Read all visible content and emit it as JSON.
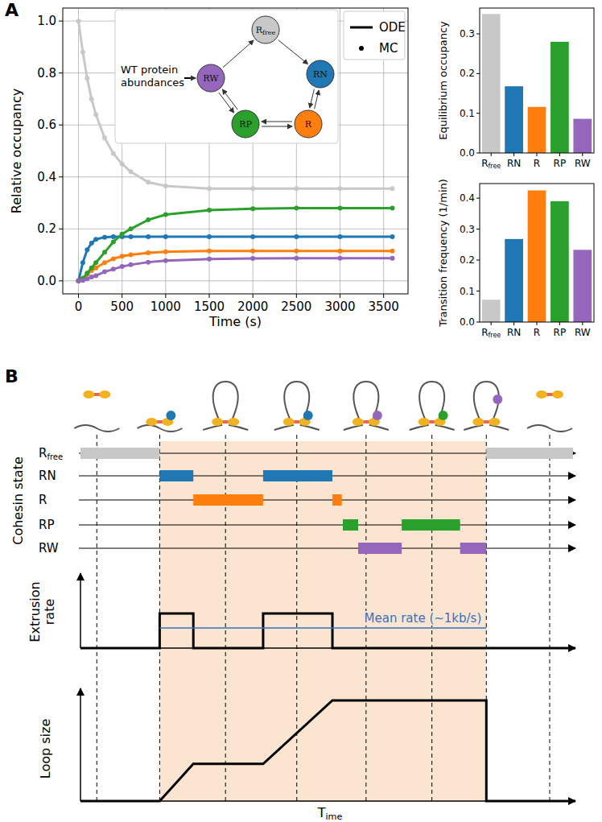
{
  "panel_labels": [
    "A",
    "B"
  ],
  "chart_data": [
    {
      "type": "line",
      "x_label": "Time (s)",
      "y_label": "Relative occupancy",
      "x": [
        0,
        50,
        100,
        150,
        200,
        300,
        400,
        500,
        600,
        800,
        1000,
        1500,
        2000,
        2500,
        3000,
        3600
      ],
      "series": [
        {
          "name": "Rfree",
          "color": "#c8c8c8",
          "values": [
            1.0,
            0.88,
            0.78,
            0.7,
            0.64,
            0.55,
            0.49,
            0.45,
            0.42,
            0.38,
            0.365,
            0.355,
            0.355,
            0.355,
            0.355,
            0.355
          ]
        },
        {
          "name": "RN",
          "color": "#1f77b4",
          "values": [
            0,
            0.07,
            0.12,
            0.145,
            0.16,
            0.168,
            0.17,
            0.17,
            0.17,
            0.17,
            0.17,
            0.17,
            0.17,
            0.17,
            0.17,
            0.17
          ]
        },
        {
          "name": "R",
          "color": "#ff7f0e",
          "values": [
            0,
            0.01,
            0.025,
            0.04,
            0.05,
            0.07,
            0.085,
            0.095,
            0.1,
            0.108,
            0.112,
            0.115,
            0.115,
            0.115,
            0.115,
            0.115
          ]
        },
        {
          "name": "RP",
          "color": "#2ca02c",
          "values": [
            0,
            0.01,
            0.03,
            0.05,
            0.07,
            0.11,
            0.15,
            0.18,
            0.2,
            0.235,
            0.255,
            0.272,
            0.278,
            0.28,
            0.28,
            0.28
          ]
        },
        {
          "name": "RW",
          "color": "#9467bd",
          "values": [
            0,
            0.002,
            0.008,
            0.015,
            0.02,
            0.035,
            0.045,
            0.055,
            0.062,
            0.072,
            0.078,
            0.084,
            0.086,
            0.087,
            0.087,
            0.087
          ]
        }
      ],
      "xlim": [
        -180,
        3780
      ],
      "ylim": [
        -0.05,
        1.05
      ],
      "xticks": [
        0,
        500,
        1000,
        1500,
        2000,
        2500,
        3000,
        3500
      ],
      "yticks": [
        {
          "value": 0,
          "label": "0.0"
        },
        {
          "value": 0.2,
          "label": "0.2"
        },
        {
          "value": 0.4,
          "label": "0.4"
        },
        {
          "value": 0.6,
          "label": "0.6"
        },
        {
          "value": 0.8,
          "label": "0.8"
        },
        {
          "value": 1,
          "label": "1.0"
        }
      ],
      "grid": true,
      "legend": "upper right",
      "marker": "dot",
      "line_style": "solid",
      "legend_items": [
        {
          "label": "ODE",
          "marker": "line"
        },
        {
          "label": "MC",
          "marker": "dot"
        }
      ]
    },
    {
      "type": "bar",
      "y_label": "Equilibrium occupancy",
      "categories": [
        "Rfree",
        "RN",
        "R",
        "RP",
        "RW"
      ],
      "values": [
        0.35,
        0.168,
        0.116,
        0.28,
        0.086
      ],
      "colors": [
        "#c8c8c8",
        "#1f77b4",
        "#ff7f0e",
        "#2ca02c",
        "#9467bd"
      ],
      "ylim": [
        0,
        0.365
      ],
      "yticks": [
        {
          "value": 0,
          "label": "0.0"
        },
        {
          "value": 0.1,
          "label": "0.1"
        },
        {
          "value": 0.2,
          "label": "0.2"
        },
        {
          "value": 0.3,
          "label": "0.3"
        }
      ],
      "grid": false
    },
    {
      "type": "bar",
      "y_label": "Transition frequency (1/min)",
      "categories": [
        "Rfree",
        "RN",
        "R",
        "RP",
        "RW"
      ],
      "values": [
        0.072,
        0.268,
        0.425,
        0.39,
        0.233
      ],
      "colors": [
        "#c8c8c8",
        "#1f77b4",
        "#ff7f0e",
        "#2ca02c",
        "#9467bd"
      ],
      "ylim": [
        0,
        0.447
      ],
      "yticks": [
        {
          "value": 0,
          "label": "0.0"
        },
        {
          "value": 0.1,
          "label": "0.1"
        },
        {
          "value": 0.2,
          "label": "0.2"
        },
        {
          "value": 0.3,
          "label": "0.3"
        },
        {
          "value": 0.4,
          "label": "0.4"
        }
      ],
      "grid": false
    }
  ],
  "diagram": {
    "inset": {
      "label": "WT protein abundances",
      "nodes": [
        {
          "label": "Rfree",
          "color": "#c8c8c8"
        },
        {
          "label": "RN",
          "color": "#1f77b4"
        },
        {
          "label": "R",
          "color": "#ff7f0e"
        },
        {
          "label": "RP",
          "color": "#2ca02c"
        },
        {
          "label": "RW",
          "color": "#9467bd"
        }
      ],
      "edges": [
        {
          "from": "RW",
          "to": "Rfree",
          "reversible": false
        },
        {
          "from": "Rfree",
          "to": "RN",
          "reversible": false
        },
        {
          "from": "RN",
          "to": "R",
          "reversible": true
        },
        {
          "from": "R",
          "to": "RP",
          "reversible": true
        },
        {
          "from": "RP",
          "to": "RW",
          "reversible": true
        }
      ]
    },
    "timeline": {
      "y_label": "Cohesin state",
      "x_label": "Time",
      "time_range": [
        0,
        100
      ],
      "events": [
        3.3,
        16,
        29.3,
        43.7,
        57.7,
        71,
        82,
        94.8
      ],
      "active": [
        16,
        82
      ],
      "states": [
        {
          "name": "Rfree",
          "color": "#c8c8c8",
          "intervals": [
            [
              0,
              16
            ],
            [
              82,
              99.5
            ]
          ]
        },
        {
          "name": "RN",
          "color": "#1f77b4",
          "intervals": [
            [
              16,
              22.8
            ],
            [
              36.9,
              50.9
            ]
          ]
        },
        {
          "name": "R",
          "color": "#ff7f0e",
          "intervals": [
            [
              22.8,
              36.9
            ],
            [
              50.9,
              52.8
            ]
          ]
        },
        {
          "name": "RP",
          "color": "#2ca02c",
          "intervals": [
            [
              53,
              56.1
            ],
            [
              64.9,
              76.7
            ]
          ]
        },
        {
          "name": "RW",
          "color": "#9467bd",
          "intervals": [
            [
              56.1,
              64.9
            ],
            [
              76.7,
              82
            ]
          ]
        }
      ]
    },
    "extrusion": {
      "y_label": "Extrusion rate",
      "mean_label": "Mean rate (~1kb/s)",
      "mean": 0.58,
      "ylim": [
        0,
        2.16
      ],
      "time": [
        0,
        16,
        16,
        22.8,
        22.8,
        36.9,
        36.9,
        50.9,
        50.9,
        100
      ],
      "values": [
        0,
        0,
        1,
        1,
        0,
        0,
        1,
        1,
        0,
        0
      ]
    },
    "loop": {
      "y_label": "Loop size",
      "ylim": [
        0,
        1.12
      ],
      "time": [
        0,
        16,
        22.8,
        36.9,
        50.9,
        82,
        82,
        100
      ],
      "values": [
        0,
        0,
        0.37,
        0.37,
        1,
        1,
        0,
        0
      ]
    }
  }
}
